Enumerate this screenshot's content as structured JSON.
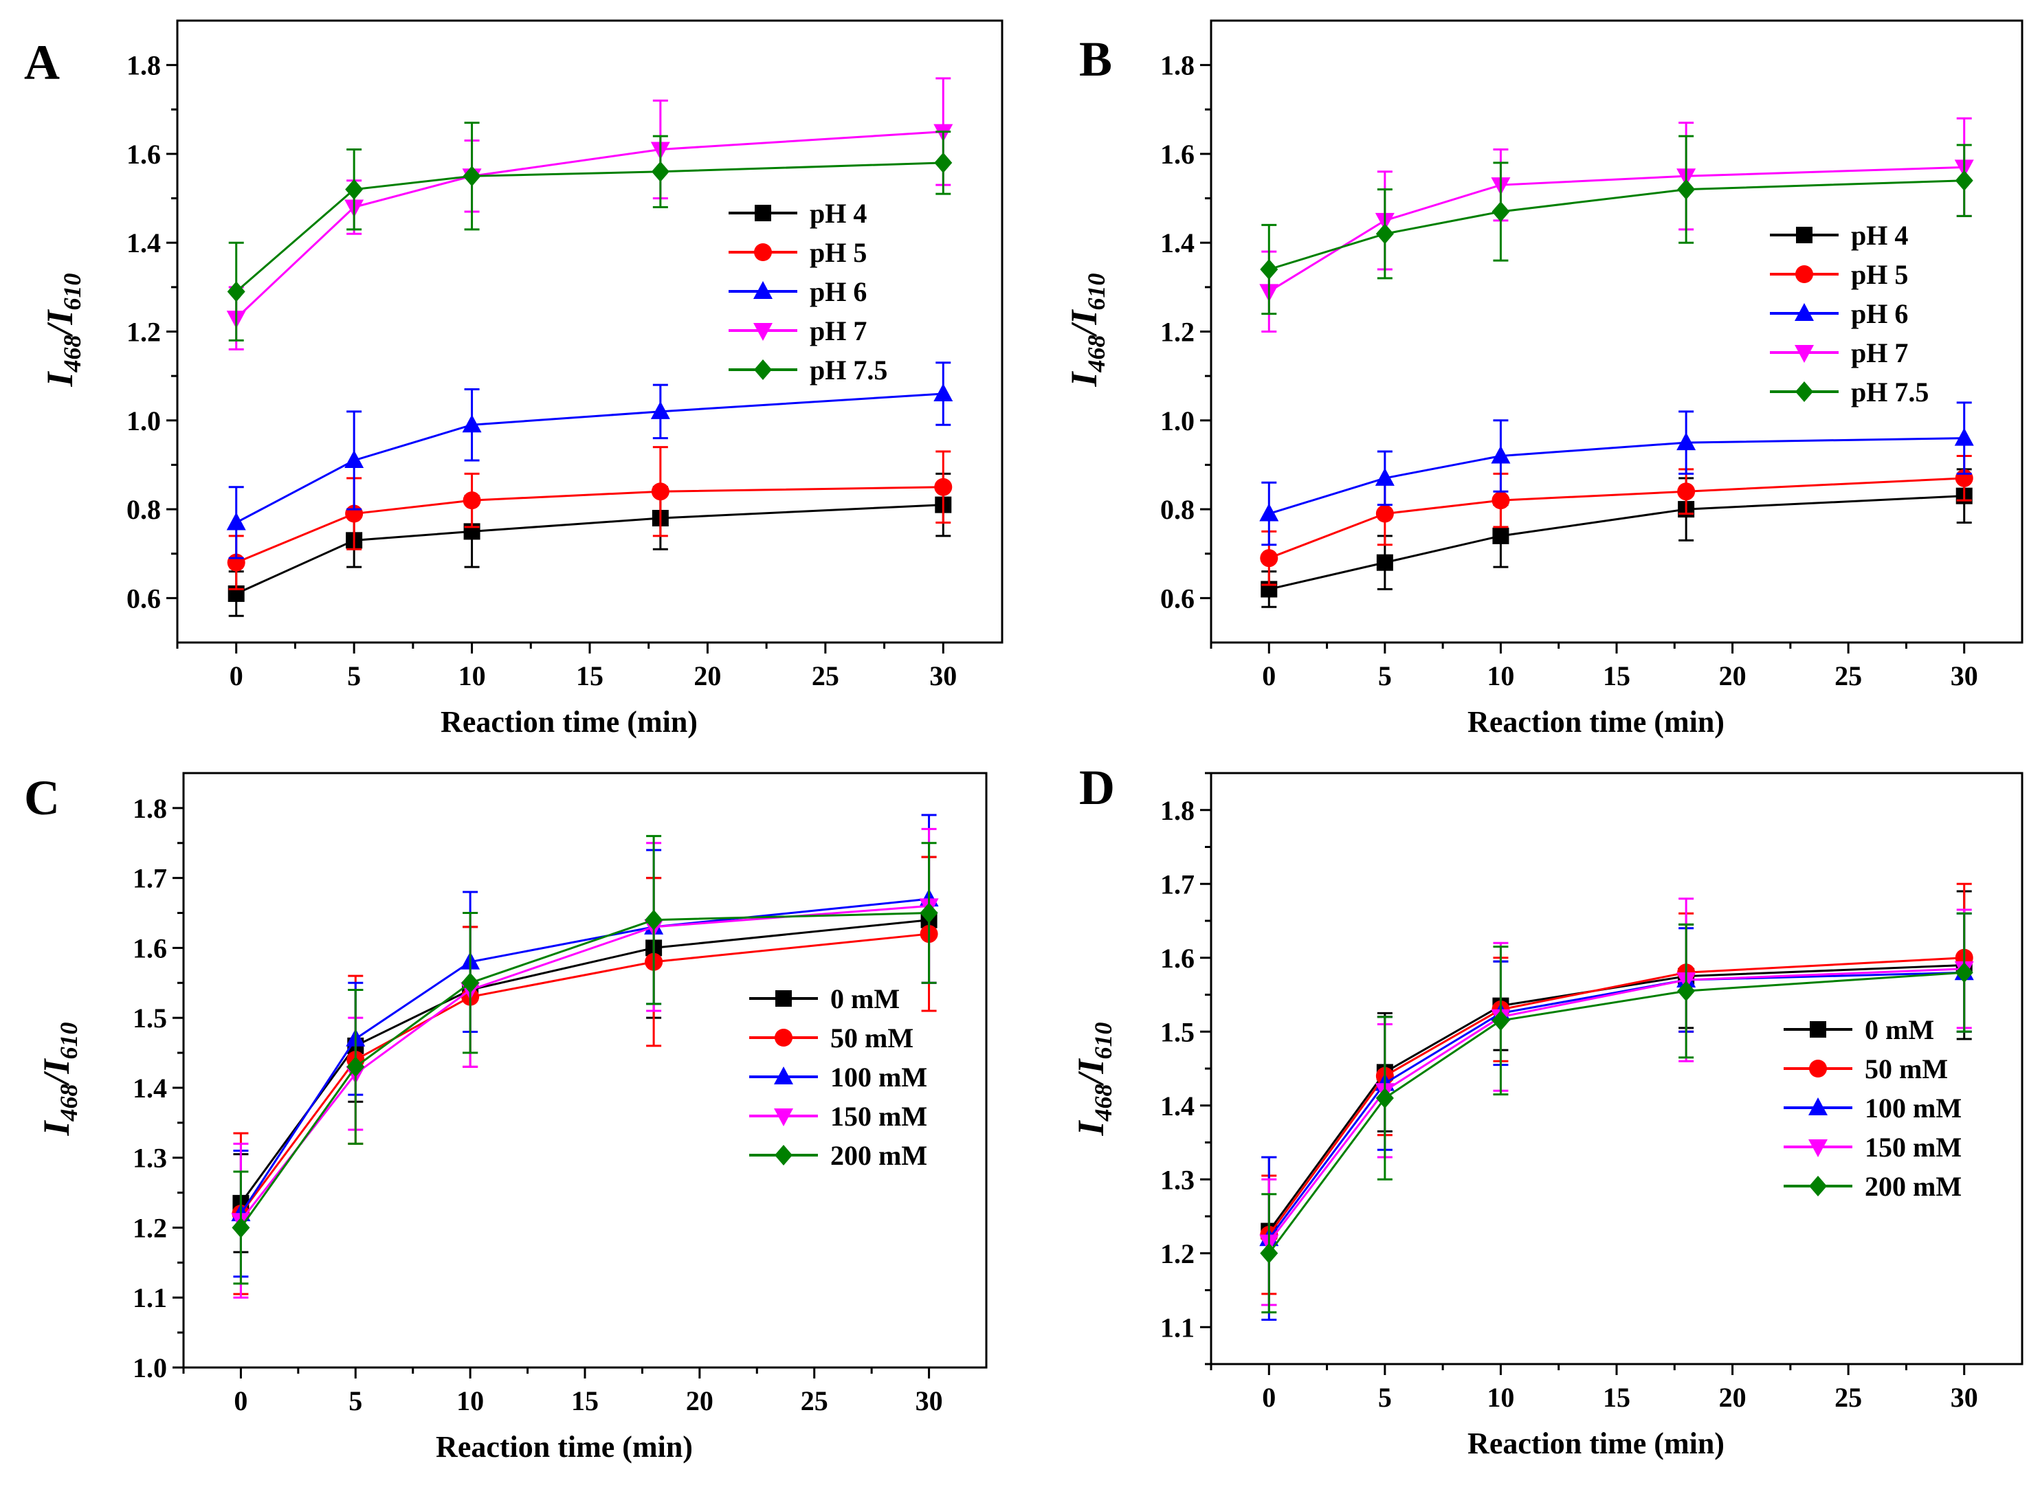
{
  "figure": {
    "ylabel_main": "I",
    "ylabel_sub1": "468",
    "ylabel_sep": "/I",
    "ylabel_sub2": "610"
  },
  "chart_data": [
    {
      "panel": "A",
      "type": "line",
      "xlabel": "Reaction time (min)",
      "ylabel": "I468/I610",
      "xlim": [
        -2.5,
        32.5
      ],
      "ylim": [
        0.5,
        1.9
      ],
      "xticks": [
        0,
        5,
        10,
        15,
        20,
        25,
        30
      ],
      "yticks": [
        0.6,
        0.8,
        1.0,
        1.2,
        1.4,
        1.6,
        1.8
      ],
      "ytick_labels": [
        "0.6",
        "0.8",
        "1.0",
        "1.2",
        "1.4",
        "1.6",
        "1.8"
      ],
      "x": [
        0,
        5,
        10,
        18,
        30
      ],
      "legend_position": "right",
      "series": [
        {
          "name": "pH 4",
          "color": "#000000",
          "marker": "square",
          "values": [
            0.61,
            0.73,
            0.75,
            0.78,
            0.81
          ],
          "errors": [
            0.05,
            0.06,
            0.08,
            0.07,
            0.07
          ]
        },
        {
          "name": "pH 5",
          "color": "#ff0000",
          "marker": "circle",
          "values": [
            0.68,
            0.79,
            0.82,
            0.84,
            0.85
          ],
          "errors": [
            0.06,
            0.08,
            0.06,
            0.1,
            0.08
          ]
        },
        {
          "name": "pH 6",
          "color": "#0000ff",
          "marker": "triangle-up",
          "values": [
            0.77,
            0.91,
            0.99,
            1.02,
            1.06
          ],
          "errors": [
            0.08,
            0.11,
            0.08,
            0.06,
            0.07
          ]
        },
        {
          "name": "pH 7",
          "color": "#ff00ff",
          "marker": "triangle-down",
          "values": [
            1.23,
            1.48,
            1.55,
            1.61,
            1.65
          ],
          "errors": [
            0.07,
            0.06,
            0.08,
            0.11,
            0.12
          ]
        },
        {
          "name": "pH 7.5",
          "color": "#008000",
          "marker": "diamond",
          "values": [
            1.29,
            1.52,
            1.55,
            1.56,
            1.58
          ],
          "errors": [
            0.11,
            0.09,
            0.12,
            0.08,
            0.07
          ]
        }
      ]
    },
    {
      "panel": "B",
      "type": "line",
      "xlabel": "Reaction time (min)",
      "ylabel": "I468/I610",
      "xlim": [
        -2.5,
        32.5
      ],
      "ylim": [
        0.5,
        1.9
      ],
      "xticks": [
        0,
        5,
        10,
        15,
        20,
        25,
        30
      ],
      "yticks": [
        0.6,
        0.8,
        1.0,
        1.2,
        1.4,
        1.6,
        1.8
      ],
      "ytick_labels": [
        "0.6",
        "0.8",
        "1.0",
        "1.2",
        "1.4",
        "1.6",
        "1.8"
      ],
      "x": [
        0,
        5,
        10,
        18,
        30
      ],
      "legend_position": "right",
      "series": [
        {
          "name": "pH 4",
          "color": "#000000",
          "marker": "square",
          "values": [
            0.62,
            0.68,
            0.74,
            0.8,
            0.83
          ],
          "errors": [
            0.04,
            0.06,
            0.07,
            0.07,
            0.06
          ]
        },
        {
          "name": "pH 5",
          "color": "#ff0000",
          "marker": "circle",
          "values": [
            0.69,
            0.79,
            0.82,
            0.84,
            0.87
          ],
          "errors": [
            0.06,
            0.07,
            0.06,
            0.05,
            0.05
          ]
        },
        {
          "name": "pH 6",
          "color": "#0000ff",
          "marker": "triangle-up",
          "values": [
            0.79,
            0.87,
            0.92,
            0.95,
            0.96
          ],
          "errors": [
            0.07,
            0.06,
            0.08,
            0.07,
            0.08
          ]
        },
        {
          "name": "pH 7",
          "color": "#ff00ff",
          "marker": "triangle-down",
          "values": [
            1.29,
            1.45,
            1.53,
            1.55,
            1.57
          ],
          "errors": [
            0.09,
            0.11,
            0.08,
            0.12,
            0.11
          ]
        },
        {
          "name": "pH 7.5",
          "color": "#008000",
          "marker": "diamond",
          "values": [
            1.34,
            1.42,
            1.47,
            1.52,
            1.54
          ],
          "errors": [
            0.1,
            0.1,
            0.11,
            0.12,
            0.08
          ]
        }
      ]
    },
    {
      "panel": "C",
      "type": "line",
      "xlabel": "Reaction time (min)",
      "ylabel": "I468/I610",
      "xlim": [
        -2.5,
        32.5
      ],
      "ylim": [
        1.0,
        1.85
      ],
      "xticks": [
        0,
        5,
        10,
        15,
        20,
        25,
        30
      ],
      "yticks": [
        1.0,
        1.1,
        1.2,
        1.3,
        1.4,
        1.5,
        1.6,
        1.7,
        1.8
      ],
      "ytick_labels": [
        "1.0",
        "1.1",
        "1.2",
        "1.3",
        "1.4",
        "1.5",
        "1.6",
        "1.7",
        "1.8"
      ],
      "x": [
        0,
        5,
        10,
        18,
        30
      ],
      "legend_position": "lower-right",
      "series": [
        {
          "name": "0 mM",
          "color": "#000000",
          "marker": "square",
          "values": [
            1.235,
            1.46,
            1.54,
            1.6,
            1.64
          ],
          "errors": [
            0.07,
            0.08,
            0.09,
            0.1,
            0.09
          ]
        },
        {
          "name": "50 mM",
          "color": "#ff0000",
          "marker": "circle",
          "values": [
            1.22,
            1.44,
            1.53,
            1.58,
            1.62
          ],
          "errors": [
            0.115,
            0.12,
            0.1,
            0.12,
            0.11
          ]
        },
        {
          "name": "100 mM",
          "color": "#0000ff",
          "marker": "triangle-up",
          "values": [
            1.22,
            1.47,
            1.58,
            1.63,
            1.67
          ],
          "errors": [
            0.09,
            0.08,
            0.1,
            0.11,
            0.12
          ]
        },
        {
          "name": "150 mM",
          "color": "#ff00ff",
          "marker": "triangle-down",
          "values": [
            1.21,
            1.42,
            1.54,
            1.63,
            1.66
          ],
          "errors": [
            0.11,
            0.08,
            0.11,
            0.12,
            0.11
          ]
        },
        {
          "name": "200 mM",
          "color": "#008000",
          "marker": "diamond",
          "values": [
            1.2,
            1.43,
            1.55,
            1.64,
            1.65
          ],
          "errors": [
            0.08,
            0.11,
            0.1,
            0.12,
            0.1
          ]
        }
      ]
    },
    {
      "panel": "D",
      "type": "line",
      "xlabel": "Reaction time (min)",
      "ylabel": "I468/I610",
      "xlim": [
        -2.5,
        32.5
      ],
      "ylim": [
        1.05,
        1.85
      ],
      "xticks": [
        0,
        5,
        10,
        15,
        20,
        25,
        30
      ],
      "yticks": [
        1.1,
        1.2,
        1.3,
        1.4,
        1.5,
        1.6,
        1.7,
        1.8
      ],
      "ytick_labels": [
        "1.1",
        "1.2",
        "1.3",
        "1.4",
        "1.5",
        "1.6",
        "1.7",
        "1.8"
      ],
      "x": [
        0,
        5,
        10,
        18,
        30
      ],
      "legend_position": "lower-right",
      "series": [
        {
          "name": "0 mM",
          "color": "#000000",
          "marker": "square",
          "values": [
            1.23,
            1.445,
            1.535,
            1.575,
            1.59
          ],
          "errors": [
            0.1,
            0.08,
            0.06,
            0.07,
            0.1
          ]
        },
        {
          "name": "50 mM",
          "color": "#ff0000",
          "marker": "circle",
          "values": [
            1.225,
            1.44,
            1.53,
            1.58,
            1.6
          ],
          "errors": [
            0.08,
            0.08,
            0.07,
            0.08,
            0.1
          ]
        },
        {
          "name": "100 mM",
          "color": "#0000ff",
          "marker": "triangle-up",
          "values": [
            1.22,
            1.43,
            1.525,
            1.57,
            1.58
          ],
          "errors": [
            0.11,
            0.09,
            0.07,
            0.07,
            0.08
          ]
        },
        {
          "name": "150 mM",
          "color": "#ff00ff",
          "marker": "triangle-down",
          "values": [
            1.215,
            1.42,
            1.52,
            1.57,
            1.585
          ],
          "errors": [
            0.085,
            0.09,
            0.1,
            0.11,
            0.08
          ]
        },
        {
          "name": "200 mM",
          "color": "#008000",
          "marker": "diamond",
          "values": [
            1.2,
            1.41,
            1.515,
            1.555,
            1.58
          ],
          "errors": [
            0.08,
            0.11,
            0.1,
            0.09,
            0.08
          ]
        }
      ]
    }
  ]
}
